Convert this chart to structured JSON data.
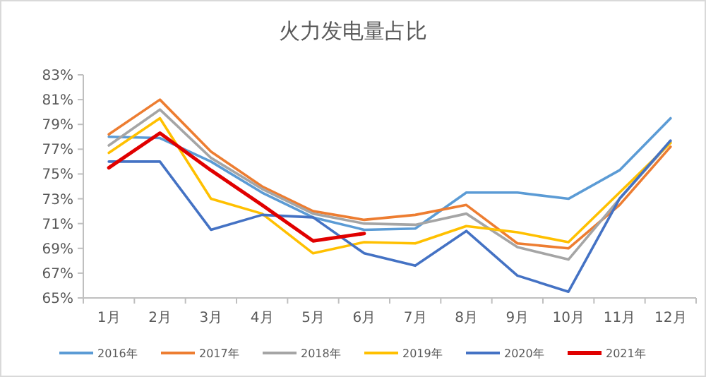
{
  "chart_data": {
    "type": "line",
    "title": "火力发电量占比",
    "categories": [
      "1月",
      "2月",
      "3月",
      "4月",
      "5月",
      "6月",
      "7月",
      "8月",
      "9月",
      "10月",
      "11月",
      "12月"
    ],
    "series": [
      {
        "name": "2016年",
        "color": "#5b9bd5",
        "values": [
          78.0,
          77.9,
          76.0,
          73.5,
          71.5,
          70.5,
          70.6,
          73.5,
          73.5,
          73.0,
          75.3,
          79.5
        ]
      },
      {
        "name": "2017年",
        "color": "#ed7d31",
        "values": [
          78.2,
          81.0,
          76.8,
          74.0,
          72.0,
          71.3,
          71.7,
          72.5,
          69.4,
          69.0,
          72.5,
          77.2
        ]
      },
      {
        "name": "2018年",
        "color": "#a5a5a5",
        "values": [
          77.3,
          80.2,
          76.3,
          73.8,
          71.8,
          71.0,
          70.9,
          71.8,
          69.1,
          68.1,
          73.0,
          77.6
        ]
      },
      {
        "name": "2019年",
        "color": "#ffc000",
        "values": [
          76.7,
          79.5,
          73.0,
          71.8,
          68.6,
          69.5,
          69.4,
          70.8,
          70.3,
          69.5,
          73.5,
          77.5
        ]
      },
      {
        "name": "2020年",
        "color": "#4472c4",
        "values": [
          76.0,
          76.0,
          70.5,
          71.7,
          71.5,
          68.6,
          67.6,
          70.4,
          66.8,
          65.5,
          73.0,
          77.7
        ]
      },
      {
        "name": "2021年",
        "color": "#e00000",
        "values": [
          75.5,
          78.3,
          75.3,
          72.5,
          69.6,
          70.2,
          null,
          null,
          null,
          null,
          null,
          null
        ]
      }
    ],
    "ylim": [
      65,
      83
    ],
    "yticks": [
      {
        "value": 65,
        "label": "65%"
      },
      {
        "value": 67,
        "label": "67%"
      },
      {
        "value": 69,
        "label": "69%"
      },
      {
        "value": 71,
        "label": "71%"
      },
      {
        "value": 73,
        "label": "73%"
      },
      {
        "value": 75,
        "label": "75%"
      },
      {
        "value": 77,
        "label": "77%"
      },
      {
        "value": 79,
        "label": "79%"
      },
      {
        "value": 81,
        "label": "81%"
      },
      {
        "value": 83,
        "label": "83%"
      }
    ],
    "legend": "bottom",
    "grid": false,
    "marker": "none",
    "line_style": "solid"
  }
}
